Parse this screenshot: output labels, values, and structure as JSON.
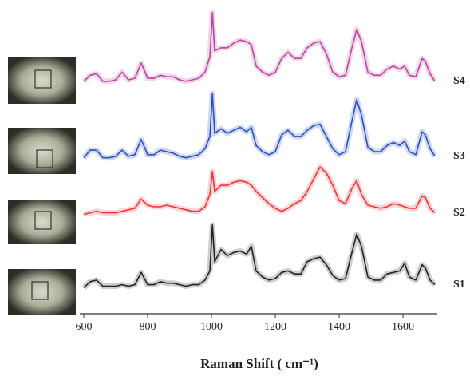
{
  "chart_data": {
    "type": "line",
    "x_label": "Raman Shift ( cm⁻¹)",
    "x": [
      600,
      620,
      640,
      660,
      680,
      700,
      720,
      740,
      760,
      780,
      800,
      820,
      840,
      860,
      880,
      900,
      920,
      940,
      960,
      980,
      995,
      1003,
      1010,
      1030,
      1050,
      1070,
      1090,
      1110,
      1125,
      1140,
      1160,
      1180,
      1200,
      1220,
      1240,
      1260,
      1280,
      1300,
      1320,
      1340,
      1360,
      1380,
      1400,
      1420,
      1440,
      1455,
      1470,
      1490,
      1510,
      1530,
      1550,
      1570,
      1590,
      1605,
      1620,
      1640,
      1660,
      1670,
      1685,
      1700
    ],
    "series": [
      {
        "name": "S1",
        "color": "#222222",
        "values": [
          0.85,
          1.05,
          1.1,
          0.9,
          0.9,
          0.9,
          0.95,
          0.9,
          0.95,
          1.35,
          0.95,
          0.95,
          1.05,
          1.0,
          1.0,
          0.95,
          0.9,
          0.95,
          0.95,
          1.1,
          1.4,
          2.9,
          1.7,
          2.1,
          1.9,
          2.0,
          2.05,
          1.95,
          2.2,
          1.4,
          1.2,
          1.1,
          1.15,
          1.35,
          1.4,
          1.3,
          1.3,
          1.7,
          1.8,
          1.85,
          1.6,
          1.25,
          1.1,
          1.15,
          2.0,
          2.6,
          2.2,
          1.2,
          1.1,
          1.1,
          1.3,
          1.35,
          1.4,
          1.65,
          1.2,
          1.1,
          1.6,
          1.5,
          1.1,
          0.95
        ]
      },
      {
        "name": "S2",
        "color": "#e8383c",
        "values": [
          3.25,
          3.3,
          3.35,
          3.3,
          3.3,
          3.3,
          3.35,
          3.4,
          3.45,
          3.75,
          3.55,
          3.5,
          3.5,
          3.55,
          3.5,
          3.45,
          3.4,
          3.35,
          3.35,
          3.5,
          3.9,
          4.65,
          4.0,
          4.2,
          4.2,
          4.3,
          4.35,
          4.3,
          4.2,
          4.0,
          3.8,
          3.6,
          3.45,
          3.35,
          3.45,
          3.6,
          3.7,
          4.0,
          4.4,
          4.8,
          4.6,
          4.2,
          3.7,
          3.6,
          4.1,
          4.35,
          3.9,
          3.55,
          3.5,
          3.45,
          3.5,
          3.6,
          3.55,
          3.5,
          3.45,
          3.45,
          3.85,
          3.8,
          3.45,
          3.3
        ]
      },
      {
        "name": "S3",
        "color": "#2b4fc0",
        "values": [
          5.1,
          5.35,
          5.35,
          5.1,
          5.1,
          5.15,
          5.35,
          5.15,
          5.2,
          5.7,
          5.2,
          5.2,
          5.35,
          5.3,
          5.25,
          5.15,
          5.1,
          5.15,
          5.2,
          5.4,
          5.8,
          7.2,
          5.9,
          6.05,
          5.9,
          6.0,
          6.1,
          5.95,
          6.1,
          5.5,
          5.3,
          5.2,
          5.3,
          5.85,
          6.0,
          5.8,
          5.8,
          6.0,
          6.15,
          6.2,
          5.8,
          5.4,
          5.2,
          5.3,
          6.3,
          7.0,
          6.5,
          5.45,
          5.3,
          5.3,
          5.5,
          5.6,
          5.5,
          5.65,
          5.3,
          5.2,
          5.95,
          5.85,
          5.4,
          5.15
        ]
      },
      {
        "name": "S4",
        "color": "#b9479f",
        "values": [
          7.6,
          7.8,
          7.85,
          7.6,
          7.6,
          7.65,
          7.9,
          7.65,
          7.7,
          8.2,
          7.7,
          7.7,
          7.8,
          7.75,
          7.75,
          7.65,
          7.6,
          7.65,
          7.7,
          7.9,
          8.4,
          9.85,
          8.6,
          8.7,
          8.7,
          8.85,
          8.95,
          8.9,
          8.8,
          8.1,
          7.9,
          7.8,
          7.9,
          8.35,
          8.55,
          8.35,
          8.35,
          8.7,
          8.85,
          8.9,
          8.5,
          7.9,
          7.75,
          7.8,
          8.7,
          9.3,
          8.9,
          7.9,
          7.8,
          7.8,
          8.0,
          8.1,
          8.0,
          8.1,
          7.8,
          7.75,
          8.35,
          8.25,
          7.85,
          7.6
        ]
      }
    ],
    "xlim": [
      600,
      1700
    ],
    "ylim": [
      0,
      10
    ],
    "xticks": [
      600,
      800,
      1000,
      1200,
      1400,
      1600
    ]
  }
}
